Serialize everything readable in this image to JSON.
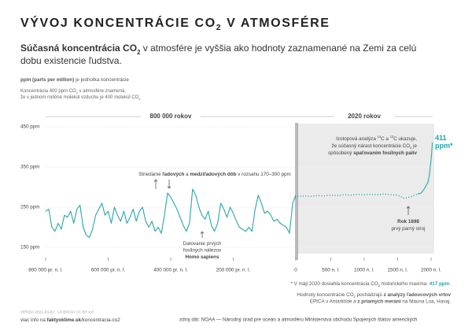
{
  "header": {
    "title": [
      [
        "VÝVOJ KONCENTRÁCIE CO",
        {
          "text": "2",
          "style": "sub"
        },
        " V ATMOSFÉRE"
      ]
    ],
    "subtitle": [
      [
        {
          "text": "Súčasná koncentrácia CO",
          "style": "bold"
        },
        {
          "text": "2",
          "style": "bold sub"
        },
        " v atmosfére je vyššia ako hodnoty zaznamenané na Zemi za celú"
      ],
      [
        "dobu existencie ľudstva."
      ]
    ],
    "unit_note": [
      [
        {
          "text": "ppm (parts per million)",
          "style": "bold"
        },
        " je jednotka koncentrácie"
      ]
    ],
    "example_note": [
      [
        "Koncentrácia 400 ppm CO",
        {
          "text": "2",
          "style": "sub"
        },
        " v atmosfére znamená,"
      ],
      [
        "že v jednom milióne molekúl vzduchu je 400 molekúl CO",
        {
          "text": "2",
          "style": "sub"
        }
      ]
    ]
  },
  "chart_data": [
    {
      "type": "line",
      "header": "800 000 rokov",
      "x": [
        -800000,
        -790000,
        -780000,
        -770000,
        -760000,
        -750000,
        -740000,
        -730000,
        -720000,
        -710000,
        -700000,
        -690000,
        -680000,
        -670000,
        -660000,
        -650000,
        -640000,
        -630000,
        -620000,
        -610000,
        -600000,
        -590000,
        -580000,
        -570000,
        -560000,
        -550000,
        -540000,
        -530000,
        -520000,
        -510000,
        -500000,
        -490000,
        -480000,
        -470000,
        -460000,
        -450000,
        -440000,
        -430000,
        -420000,
        -410000,
        -400000,
        -390000,
        -380000,
        -370000,
        -360000,
        -350000,
        -340000,
        -330000,
        -320000,
        -310000,
        -300000,
        -290000,
        -280000,
        -270000,
        -260000,
        -250000,
        -240000,
        -230000,
        -220000,
        -210000,
        -200000,
        -190000,
        -180000,
        -170000,
        -160000,
        -150000,
        -140000,
        -130000,
        -120000,
        -110000,
        -100000,
        -90000,
        -80000,
        -70000,
        -60000,
        -50000,
        -40000,
        -30000,
        -20000,
        -10000,
        0
      ],
      "series": [
        {
          "color": "#2aa5a8",
          "dash": "solid",
          "values": [
            240,
            245,
            200,
            190,
            210,
            195,
            230,
            225,
            240,
            210,
            245,
            255,
            200,
            180,
            175,
            195,
            230,
            245,
            260,
            230,
            240,
            210,
            250,
            230,
            215,
            240,
            210,
            225,
            245,
            215,
            240,
            250,
            215,
            200,
            215,
            190,
            200,
            185,
            230,
            285,
            275,
            260,
            245,
            225,
            205,
            190,
            210,
            295,
            280,
            250,
            230,
            220,
            240,
            205,
            190,
            210,
            260,
            245,
            225,
            250,
            235,
            215,
            200,
            195,
            190,
            200,
            190,
            245,
            280,
            260,
            235,
            240,
            230,
            215,
            220,
            210,
            205,
            200,
            185,
            260,
            280
          ]
        }
      ],
      "xlim": [
        -800000,
        0
      ],
      "xticks": [
        {
          "value": -800000,
          "label": "800 000 pr. n. l."
        },
        {
          "value": -600000,
          "label": "600 000 pr. n. l."
        },
        {
          "value": -400000,
          "label": "400 000 pr. n. l."
        },
        {
          "value": -200000,
          "label": "200 000 pr. n. l."
        },
        0
      ],
      "ylim": [
        150,
        450
      ],
      "yticks": [
        {
          "value": 450,
          "label": "450 ppm"
        },
        {
          "value": 350,
          "label": "350 ppm"
        },
        {
          "value": 250,
          "label": "250 ppm"
        },
        {
          "value": 150,
          "label": "150 ppm"
        }
      ],
      "grid": true,
      "annotations": [
        [
          [
            "Striedanie ",
            {
              "text": "ľadových",
              "style": "bold"
            },
            " a ",
            {
              "text": "medziľadových dôb",
              "style": "bold"
            },
            " v rozsahu 170–300 ppm"
          ]
        ],
        [
          [
            "Datovanie prvých"
          ],
          [
            "fosílnych nálezov"
          ],
          [
            {
              "text": "Homo sapiens",
              "style": "bold"
            }
          ]
        ]
      ]
    },
    {
      "type": "line",
      "header": "2020 rokov",
      "series": [
        {
          "color": "#2aa5a8",
          "dash": "dotted",
          "x": [
            0,
            100,
            200,
            300,
            400,
            500,
            600,
            700,
            800,
            900,
            1000,
            1100,
            1200,
            1300,
            1400,
            1500,
            1600,
            1700,
            1800
          ],
          "values": [
            277,
            278,
            277,
            279,
            278,
            280,
            279,
            281,
            280,
            282,
            281,
            282,
            281,
            283,
            281,
            280,
            272,
            276,
            283
          ]
        },
        {
          "color": "#2aa5a8",
          "dash": "solid",
          "x": [
            1800,
            1850,
            1900,
            1950,
            1970,
            1990,
            2000,
            2010,
            2019
          ],
          "values": [
            283,
            285,
            296,
            311,
            325,
            354,
            369,
            389,
            411
          ]
        }
      ],
      "xlim": [
        0,
        2000
      ],
      "xticks": [
        {
          "value": 500,
          "label": "500 n. l."
        },
        {
          "value": 1000,
          "label": "1000 n. l."
        },
        {
          "value": 1500,
          "label": "1500 n. l."
        },
        {
          "value": 2000,
          "label": "2000 n. l."
        }
      ],
      "ylim": [
        150,
        450
      ],
      "yticks": [
        150,
        250,
        350,
        450
      ],
      "grid": true,
      "background": "#ebebeb",
      "end_label": [
        [
          {
            "text": "411",
            "style": "accent"
          }
        ],
        [
          {
            "text": "ppm*",
            "style": "accent"
          }
        ]
      ],
      "annotations": [
        [
          [
            "Izotopová analýza ",
            {
              "text": "14",
              "style": "sup"
            },
            "C a ",
            {
              "text": "13",
              "style": "sup"
            },
            "C ukazuje,"
          ],
          [
            "že súčasný nárast koncentrácie CO",
            {
              "text": "2",
              "style": "sub"
            },
            " je"
          ],
          [
            "spôsobený ",
            {
              "text": "spaľovaním fosílnych palív",
              "style": "bold"
            }
          ]
        ],
        [
          [
            {
              "text": "Rok 1698",
              "style": "bold"
            }
          ],
          [
            "prvý parný stroj"
          ]
        ]
      ]
    }
  ],
  "footer": {
    "footnote": [
      [
        "* V máji 2020 dosiahla koncentrácia CO",
        {
          "text": "2",
          "style": "sub"
        },
        " historického maxima: ",
        {
          "text": "417 ppm",
          "style": "accent"
        },
        "."
      ]
    ],
    "source_note": [
      [
        "Hodnoty koncentrácie CO",
        {
          "text": "2",
          "style": "sub"
        },
        " pochádzajú ",
        {
          "text": "z analýzy ľadovcových vrtov",
          "style": "bold"
        }
      ],
      [
        "EPICA v Antarktíde a ",
        {
          "text": "z priamych meraní",
          "style": "bold"
        },
        " na Mauna Loa, Havaj."
      ]
    ],
    "version": "VERZIA 2021-03-02 · LICENCIA CC BY 4.0",
    "more_info": [
      [
        "viac info na ",
        {
          "text": "faktyoklime.sk",
          "style": "bold"
        },
        "/koncentracia-co2"
      ]
    ],
    "source": "zdroj dát: NOAA — Národný úrad pre oceán a atmosféru Ministerstva obchodu Spojených štátov amerických"
  }
}
